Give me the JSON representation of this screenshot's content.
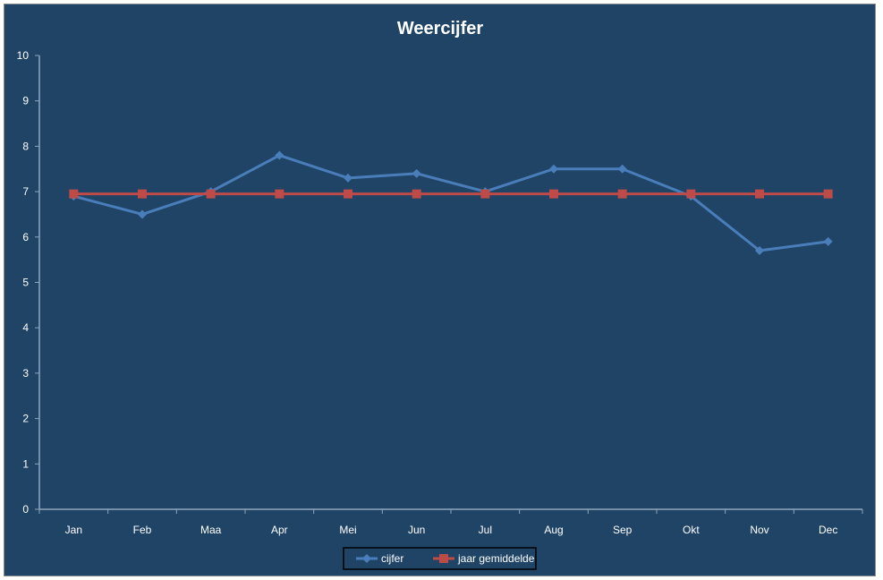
{
  "chart_data": {
    "type": "line",
    "title": "Weercijfer",
    "xlabel": "",
    "ylabel": "",
    "categories": [
      "Jan",
      "Feb",
      "Maa",
      "Apr",
      "Mei",
      "Jun",
      "Jul",
      "Aug",
      "Sep",
      "Okt",
      "Nov",
      "Dec"
    ],
    "ylim": [
      0,
      10
    ],
    "yticks": [
      "0",
      "1",
      "2",
      "3",
      "4",
      "5",
      "6",
      "7",
      "8",
      "9",
      "10"
    ],
    "grid": false,
    "legend_position": "bottom",
    "series": [
      {
        "name": "cijfer",
        "color": "#4a7ebb",
        "marker": "diamond",
        "values": [
          6.9,
          6.5,
          7.0,
          7.8,
          7.3,
          7.4,
          7.0,
          7.5,
          7.5,
          6.9,
          5.7,
          5.9
        ]
      },
      {
        "name": "jaar gemiddelde",
        "color": "#be4b48",
        "marker": "square",
        "values": [
          6.95,
          6.95,
          6.95,
          6.95,
          6.95,
          6.95,
          6.95,
          6.95,
          6.95,
          6.95,
          6.95,
          6.95
        ]
      }
    ]
  }
}
